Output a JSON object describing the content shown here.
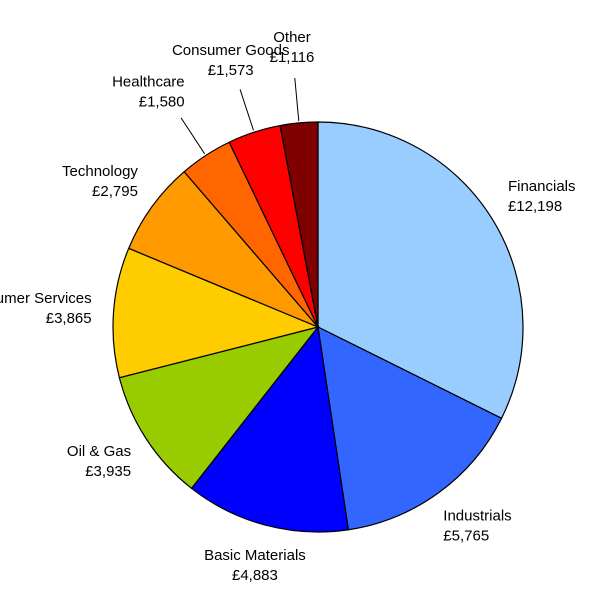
{
  "chart_data": {
    "type": "pie",
    "categories": [
      "Financials",
      "Industrials",
      "Basic Materials",
      "Oil & Gas",
      "Consumer Services",
      "Technology",
      "Healthcare",
      "Consumer Goods",
      "Other"
    ],
    "values": [
      12198,
      5765,
      4883,
      3935,
      3865,
      2795,
      1580,
      1573,
      1116
    ],
    "value_labels": [
      "£12,198",
      "£5,765",
      "£4,883",
      "£3,935",
      "£3,865",
      "£2,795",
      "£1,580",
      "£1,573",
      "£1,116"
    ],
    "colors": [
      "#99ccff",
      "#3366ff",
      "#0000ff",
      "#99cc00",
      "#ffcc00",
      "#ff9900",
      "#ff6600",
      "#ff0000",
      "#800000"
    ]
  }
}
